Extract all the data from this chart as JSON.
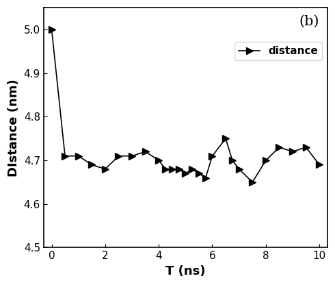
{
  "x": [
    0,
    0.5,
    1.0,
    1.5,
    2.0,
    2.5,
    3.0,
    3.5,
    4.0,
    4.25,
    4.5,
    4.75,
    5.0,
    5.25,
    5.5,
    5.75,
    6.0,
    6.5,
    6.75,
    7.0,
    7.5,
    8.0,
    8.5,
    9.0,
    9.5,
    10.0
  ],
  "y": [
    5.0,
    4.71,
    4.71,
    4.69,
    4.68,
    4.71,
    4.71,
    4.72,
    4.7,
    4.68,
    4.68,
    4.68,
    4.67,
    4.68,
    4.67,
    4.66,
    4.71,
    4.75,
    4.7,
    4.68,
    4.65,
    4.7,
    4.73,
    4.72,
    4.73,
    4.69
  ],
  "title_label": "(b)",
  "xlabel": "T (ns)",
  "ylabel": "DIstance (nm)",
  "xlim": [
    -0.3,
    10.3
  ],
  "ylim": [
    4.5,
    5.05
  ],
  "yticks": [
    4.5,
    4.6,
    4.7,
    4.8,
    4.9,
    5.0
  ],
  "xticks": [
    0,
    2,
    4,
    6,
    8,
    10
  ],
  "legend_label": "distance",
  "line_color": "#000000",
  "marker": ">",
  "marker_size": 7,
  "line_style": "-",
  "line_width": 1.2,
  "marker_color": "#000000",
  "bg_color": "#ffffff",
  "font_size_label": 13,
  "font_size_tick": 11,
  "font_size_legend": 11,
  "font_size_title": 15
}
